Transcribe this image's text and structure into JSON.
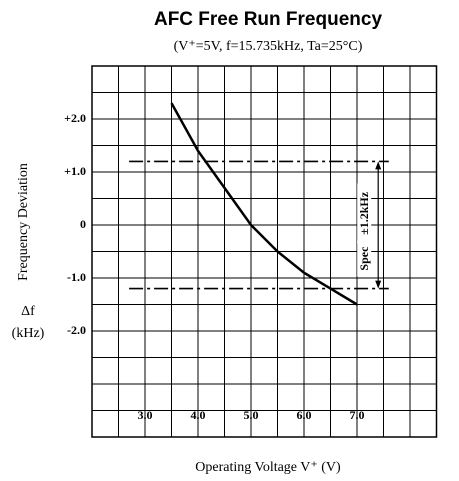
{
  "chart_data": {
    "type": "line",
    "title": "AFC Free Run Frequency",
    "subtitle": "(V⁺=5V, f=15.735kHz, Ta=25°C)",
    "x_label": "Operating Voltage V⁺ (V)",
    "y_label": "Frequency Deviation",
    "y_unit_symbol": "Δf",
    "y_unit": "(kHz)",
    "x": [
      3.5,
      4.0,
      4.5,
      5.0,
      5.5,
      6.0,
      6.5,
      7.0
    ],
    "series": [
      {
        "name": "AFC free run frequency",
        "color": "#000000",
        "values": [
          2.3,
          1.4,
          0.7,
          0.0,
          -0.5,
          -0.9,
          -1.2,
          -1.5
        ]
      }
    ],
    "xlim": [
      2.0,
      8.5
    ],
    "ylim": [
      -4.0,
      3.0
    ],
    "xticks": [
      {
        "value": 3,
        "label": "3.0"
      },
      {
        "value": 4,
        "label": "4.0"
      },
      {
        "value": 5,
        "label": "5.0"
      },
      {
        "value": 6,
        "label": "6.0"
      },
      {
        "value": 7,
        "label": "7.0"
      }
    ],
    "yticks": [
      {
        "value": 2,
        "label": "+2.0"
      },
      {
        "value": 1,
        "label": "+1.0"
      },
      0,
      {
        "value": -1,
        "label": "-1.0"
      },
      {
        "value": -2,
        "label": "-2.0"
      }
    ],
    "xgrid": [
      2.5,
      3.0,
      3.5,
      4.0,
      4.5,
      5.0,
      5.5,
      6.0,
      6.5,
      7.0,
      7.5,
      8.0
    ],
    "ygrid": [
      2.5,
      2.0,
      1.5,
      1.0,
      0.5,
      0.0,
      -0.5,
      -1.0,
      -1.5,
      -2.0,
      -2.5,
      -3.0,
      -3.5
    ],
    "grid": true,
    "spec": {
      "label": "Spec",
      "range_label": "±1.2kHz",
      "values": [
        1.2,
        -1.2
      ],
      "x": [
        2.7,
        7.6
      ],
      "arrow_x": 7.4
    }
  }
}
